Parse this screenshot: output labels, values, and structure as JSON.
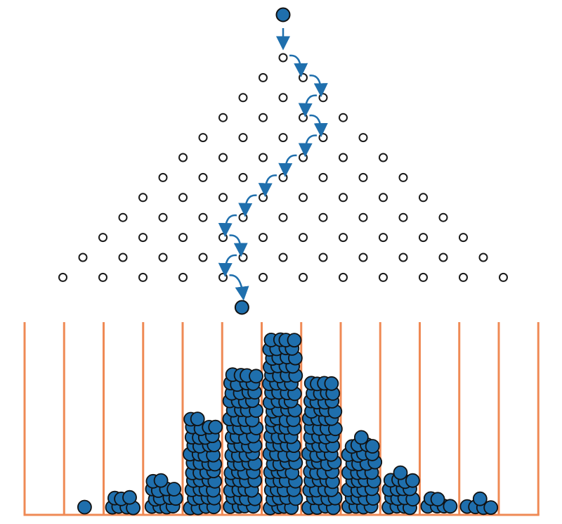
{
  "diagram": {
    "type": "galton-board",
    "colors": {
      "ball_fill": "#1f6fad",
      "ball_stroke": "#111111",
      "peg_stroke": "#1a1a1a",
      "arrow": "#1f6fad",
      "bin_lines": "#ef8a55"
    },
    "peg_rows": 12,
    "path_steps": [
      "R",
      "R",
      "L",
      "R",
      "L",
      "L",
      "L",
      "L",
      "L",
      "R",
      "L",
      "R"
    ],
    "bin_counts": [
      0,
      1,
      7,
      14,
      42,
      64,
      80,
      60,
      33,
      17,
      6,
      5,
      0
    ]
  }
}
